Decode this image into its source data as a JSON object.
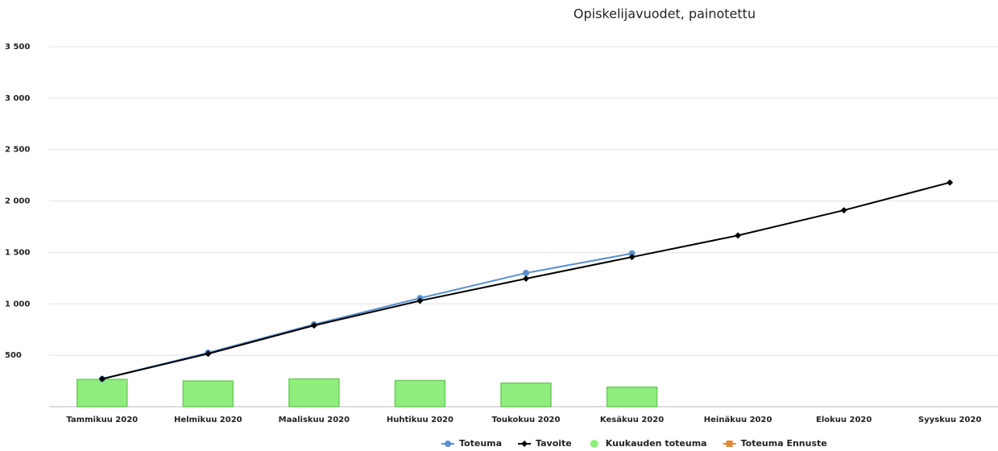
{
  "chart_data": {
    "type": "combo",
    "title": "Opiskelijavuodet, painotettu",
    "categories": [
      "Tammikuu 2020",
      "Helmikuu 2020",
      "Maaliskuu 2020",
      "Huhtikuu 2020",
      "Toukokuu 2020",
      "Kesäkuu 2020",
      "Heinäkuu 2020",
      "Elokuu 2020",
      "Syyskuu 2020"
    ],
    "series": [
      {
        "name": "Toteuma",
        "type": "line",
        "marker": "circle",
        "color": "#5b8fd0",
        "values": [
          270,
          525,
          800,
          1055,
          1300,
          1490,
          null,
          null,
          null
        ]
      },
      {
        "name": "Tavoite",
        "type": "line",
        "marker": "diamond",
        "color": "#000000",
        "values": [
          270,
          515,
          790,
          1030,
          1245,
          1455,
          1665,
          1910,
          2180
        ]
      },
      {
        "name": "Kuukauden toteuma",
        "type": "bar",
        "marker": "dot",
        "color": "#90ee7e",
        "values": [
          265,
          250,
          270,
          255,
          230,
          190,
          null,
          null,
          null
        ]
      },
      {
        "name": "Toteuma Ennuste",
        "type": "line",
        "marker": "square",
        "color": "#e0883a",
        "values": [
          null,
          null,
          null,
          null,
          null,
          null,
          null,
          null,
          null
        ]
      }
    ],
    "ylim": [
      0,
      3500
    ],
    "yticks": [
      500,
      {
        "value": 1000,
        "label": "1 000"
      },
      {
        "value": 1500,
        "label": "1 500"
      },
      {
        "value": 2000,
        "label": "2 000"
      },
      {
        "value": 2500,
        "label": "2 500"
      },
      {
        "value": 3000,
        "label": "3 000"
      },
      {
        "value": 3500,
        "label": "3 500"
      }
    ],
    "grid": true,
    "legend": "bottom"
  }
}
